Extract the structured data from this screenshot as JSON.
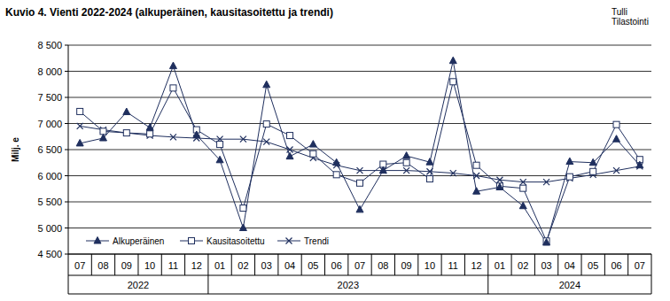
{
  "chart_data": {
    "type": "line",
    "title": "Kuvio 4. Vienti 2022-2024  (alkuperäinen, kausitasoitettu  ja trendi)",
    "source": [
      "Tulli",
      "Tilastointi"
    ],
    "y_label": "Milj. e",
    "categories": [
      "07",
      "08",
      "09",
      "10",
      "11",
      "12",
      "01",
      "02",
      "03",
      "04",
      "05",
      "06",
      "07",
      "08",
      "09",
      "10",
      "11",
      "12",
      "01",
      "02",
      "03",
      "04",
      "05",
      "06",
      "07"
    ],
    "category_groups": [
      {
        "label": "2022",
        "count": 6
      },
      {
        "label": "2023",
        "count": 12
      },
      {
        "label": "2024",
        "count": 7
      }
    ],
    "series": [
      {
        "name": "Alkuperäinen",
        "color": "#1f2f5e",
        "marker": "triangle",
        "line_style": "solid",
        "values": [
          6620,
          6720,
          7220,
          6920,
          8100,
          6780,
          6300,
          5000,
          7740,
          6370,
          6600,
          6250,
          5350,
          6100,
          6380,
          6260,
          8200,
          5700,
          5780,
          5420,
          4720,
          6270,
          6250,
          6700,
          6200
        ]
      },
      {
        "name": "Kausitasoitettu",
        "color": "#1f2f5e",
        "marker": "square",
        "line_style": "solid",
        "values": [
          7230,
          6850,
          6820,
          6800,
          7680,
          6880,
          6600,
          5380,
          6990,
          6770,
          6420,
          6020,
          5860,
          6220,
          6250,
          5940,
          7800,
          6200,
          5800,
          5760,
          4750,
          5980,
          6080,
          6980,
          6310
        ]
      },
      {
        "name": "Trendi",
        "color": "#1f2f5e",
        "marker": "x",
        "line_style": "solid",
        "values": [
          6950,
          6880,
          6820,
          6770,
          6740,
          6720,
          6700,
          6700,
          6650,
          6500,
          6340,
          6200,
          6100,
          6100,
          6100,
          6080,
          6050,
          6000,
          5920,
          5880,
          5880,
          5950,
          6020,
          6100,
          6180
        ]
      }
    ],
    "ylim": [
      4500,
      8500
    ],
    "yticks": [
      {
        "value": 4500,
        "label": "4 500"
      },
      {
        "value": 5000,
        "label": "5 000"
      },
      {
        "value": 5500,
        "label": "5 500"
      },
      {
        "value": 6000,
        "label": "6 000"
      },
      {
        "value": 6500,
        "label": "6 500"
      },
      {
        "value": 7000,
        "label": "7 000"
      },
      {
        "value": 7500,
        "label": "7 500"
      },
      {
        "value": 8000,
        "label": "8 000"
      },
      {
        "value": 8500,
        "label": "8 500"
      }
    ],
    "grid": true,
    "legend": "bottom-left"
  }
}
